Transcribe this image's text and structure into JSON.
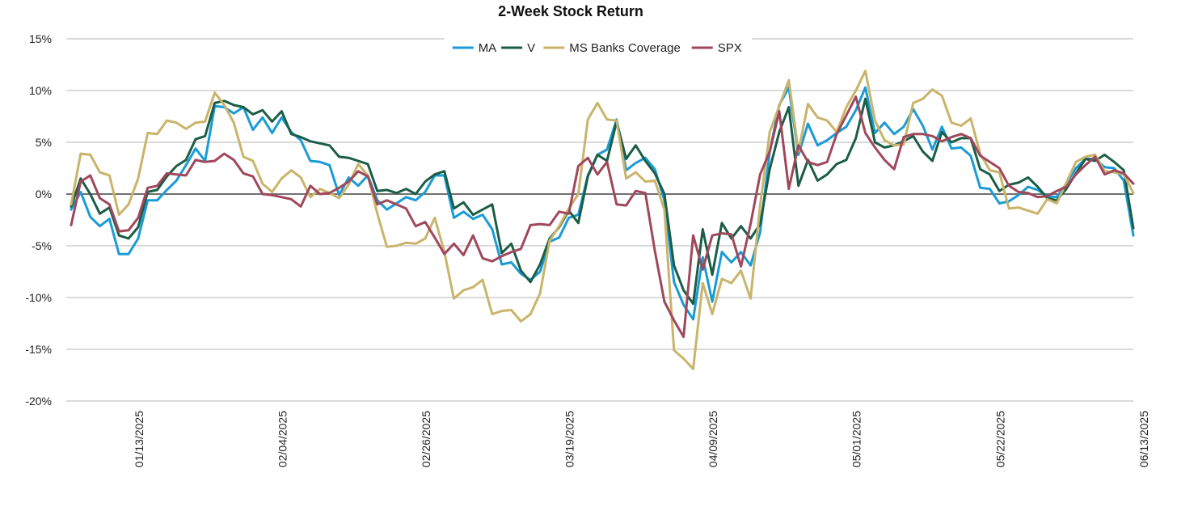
{
  "chart_data": {
    "type": "line",
    "title": "2-Week Stock Return",
    "y_axis": {
      "min": -20,
      "max": 15,
      "step": 5,
      "tick_suffix": "%"
    },
    "x_tick_labels": [
      "01/13/2025",
      "02/04/2025",
      "02/26/2025",
      "03/19/2025",
      "04/09/2025",
      "05/01/2025",
      "05/22/2025",
      "06/13/2025"
    ],
    "x_tick_index": [
      7,
      22,
      37,
      52,
      67,
      82,
      97,
      112
    ],
    "grid": true,
    "legend_position": "top-center",
    "series": [
      {
        "name": "MA",
        "color": "#1a9bd7",
        "values": [
          -1.5,
          0.2,
          -2.2,
          -3.1,
          -2.4,
          -5.8,
          -5.8,
          -4.3,
          -0.6,
          -0.6,
          0.4,
          1.3,
          2.8,
          4.4,
          3.2,
          8.5,
          8.4,
          7.8,
          8.4,
          6.2,
          7.4,
          5.9,
          7.4,
          6.0,
          5.2,
          3.2,
          3.1,
          2.8,
          -0.1,
          1.6,
          0.8,
          1.8,
          -0.6,
          -1.5,
          -0.9,
          -0.3,
          -0.6,
          0.2,
          1.8,
          1.8,
          -2.3,
          -1.7,
          -2.4,
          -2.0,
          -3.4,
          -6.8,
          -6.6,
          -7.7,
          -8.3,
          -7.5,
          -4.6,
          -4.2,
          -2.3,
          -2.0,
          1.8,
          3.8,
          4.3,
          7.2,
          2.3,
          3.0,
          3.5,
          2.4,
          -0.6,
          -8.5,
          -10.7,
          -12.1,
          -6.1,
          -10.4,
          -5.6,
          -6.6,
          -5.6,
          -6.9,
          -3.7,
          4.1,
          8.6,
          10.3,
          3.8,
          6.8,
          4.7,
          5.2,
          5.9,
          6.5,
          8.1,
          10.3,
          5.9,
          6.9,
          5.8,
          6.5,
          8.2,
          6.6,
          4.3,
          6.5,
          4.4,
          4.5,
          3.7,
          0.6,
          0.5,
          -0.9,
          -0.7,
          -0.1,
          0.7,
          0.4,
          -0.2,
          -0.3,
          1.0,
          2.5,
          3.4,
          3.4,
          2.6,
          2.5,
          1.3,
          -4.0
        ]
      },
      {
        "name": "V",
        "color": "#1b5e45",
        "values": [
          -1.2,
          1.5,
          0.0,
          -1.9,
          -1.3,
          -4.0,
          -4.3,
          -3.2,
          0.2,
          0.4,
          1.7,
          2.7,
          3.3,
          5.3,
          5.6,
          8.8,
          9.0,
          8.6,
          8.4,
          7.7,
          8.1,
          7.0,
          8.0,
          5.8,
          5.5,
          5.1,
          4.9,
          4.7,
          3.6,
          3.5,
          3.2,
          2.9,
          0.3,
          0.4,
          0.1,
          0.5,
          0.0,
          1.2,
          1.9,
          2.2,
          -1.4,
          -0.8,
          -2.0,
          -1.5,
          -1.0,
          -5.7,
          -4.8,
          -7.4,
          -8.5,
          -6.8,
          -4.3,
          -3.2,
          -1.6,
          -2.8,
          1.7,
          3.8,
          3.2,
          7.0,
          3.4,
          4.7,
          3.2,
          2.0,
          0.0,
          -6.9,
          -9.3,
          -10.6,
          -3.4,
          -7.8,
          -2.8,
          -4.3,
          -3.1,
          -4.3,
          -2.9,
          2.4,
          6.0,
          8.4,
          0.8,
          3.3,
          1.3,
          1.9,
          2.9,
          3.3,
          5.4,
          9.2,
          5.0,
          4.5,
          4.7,
          5.1,
          5.6,
          4.1,
          3.2,
          6.0,
          5.0,
          5.4,
          5.4,
          2.4,
          1.9,
          0.3,
          0.9,
          1.1,
          1.6,
          0.7,
          -0.4,
          -0.6,
          0.5,
          2.0,
          3.4,
          3.2,
          3.8,
          3.1,
          2.3,
          -3.3
        ]
      },
      {
        "name": "MS Banks Coverage",
        "color": "#c9b46a",
        "values": [
          -1.0,
          3.9,
          3.8,
          2.1,
          1.8,
          -2.0,
          -1.0,
          1.5,
          5.9,
          5.8,
          7.1,
          6.9,
          6.3,
          6.9,
          7.0,
          9.8,
          8.6,
          6.9,
          3.6,
          3.2,
          1.0,
          0.2,
          1.5,
          2.3,
          1.6,
          -0.3,
          0.5,
          0.1,
          -0.4,
          0.9,
          2.9,
          1.8,
          -1.9,
          -5.1,
          -5.0,
          -4.7,
          -4.8,
          -4.3,
          -2.3,
          -5.6,
          -10.1,
          -9.3,
          -9.0,
          -8.3,
          -11.6,
          -11.3,
          -11.2,
          -12.3,
          -11.6,
          -9.6,
          -4.5,
          -3.1,
          -1.4,
          0.0,
          7.2,
          8.8,
          7.2,
          7.1,
          1.5,
          2.1,
          1.2,
          1.3,
          -1.5,
          -15.1,
          -15.9,
          -16.9,
          -8.6,
          -11.6,
          -8.2,
          -8.6,
          -7.4,
          -10.1,
          -1.1,
          6.0,
          8.5,
          11.0,
          4.1,
          8.7,
          7.4,
          7.1,
          6.0,
          8.4,
          10.0,
          11.9,
          7.1,
          5.2,
          4.7,
          4.8,
          8.8,
          9.2,
          10.1,
          9.5,
          6.9,
          6.6,
          7.3,
          3.9,
          2.3,
          2.1,
          -1.4,
          -1.3,
          -1.6,
          -1.9,
          -0.5,
          -0.9,
          1.1,
          3.1,
          3.6,
          3.8,
          2.2,
          2.1,
          1.9,
          0.1
        ]
      },
      {
        "name": "SPX",
        "color": "#a0475c",
        "values": [
          -3.0,
          1.2,
          1.8,
          -0.4,
          -1.0,
          -3.6,
          -3.5,
          -2.3,
          0.6,
          0.8,
          2.0,
          1.9,
          1.8,
          3.3,
          3.1,
          3.2,
          3.9,
          3.3,
          2.0,
          1.7,
          0.0,
          -0.1,
          -0.3,
          -0.5,
          -1.2,
          0.8,
          0.0,
          0.1,
          0.6,
          1.2,
          2.2,
          1.7,
          -1.0,
          -0.6,
          -1.0,
          -1.4,
          -3.1,
          -2.7,
          -4.2,
          -5.8,
          -4.8,
          -5.9,
          -4.0,
          -6.2,
          -6.5,
          -6.0,
          -5.6,
          -5.3,
          -3.0,
          -2.9,
          -3.0,
          -1.7,
          -1.9,
          2.7,
          3.5,
          1.9,
          3.1,
          -1.0,
          -1.1,
          0.3,
          0.1,
          -5.5,
          -10.4,
          -12.2,
          -13.8,
          -4.0,
          -7.3,
          -4.0,
          -3.8,
          -3.9,
          -7.0,
          -2.9,
          1.9,
          4.1,
          8.0,
          0.5,
          4.7,
          3.1,
          2.8,
          3.1,
          5.8,
          7.6,
          9.4,
          5.9,
          4.5,
          3.3,
          2.4,
          5.5,
          5.8,
          5.8,
          5.6,
          5.1,
          5.5,
          5.8,
          5.4,
          3.7,
          3.1,
          2.5,
          0.8,
          0.2,
          0.1,
          -0.3,
          -0.2,
          0.3,
          0.7,
          1.9,
          2.8,
          3.6,
          1.9,
          2.3,
          2.0,
          1.0
        ]
      }
    ]
  }
}
